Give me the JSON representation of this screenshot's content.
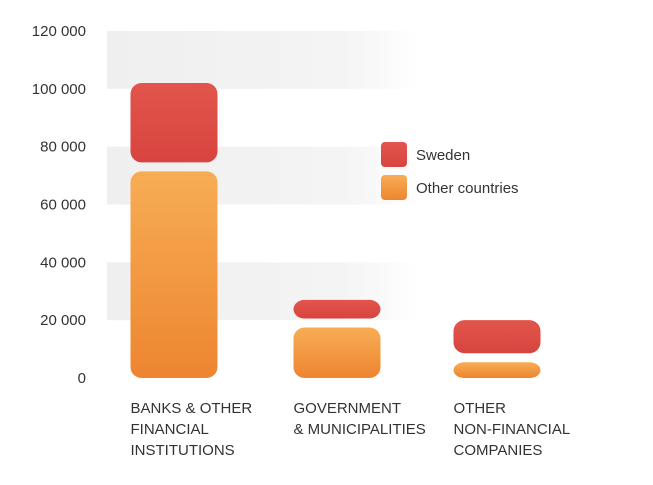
{
  "chart_data": {
    "type": "bar",
    "stacked": true,
    "categories": [
      [
        "BANKS & OTHER",
        "FINANCIAL",
        "INSTITUTIONS"
      ],
      [
        "GOVERNMENT",
        "& MUNICIPALITIES"
      ],
      [
        "OTHER",
        "NON-FINANCIAL",
        "COMPANIES"
      ]
    ],
    "series": [
      {
        "name": "Other countries",
        "color": "#f0903a",
        "values": [
          73000,
          19000,
          7000
        ]
      },
      {
        "name": "Sweden",
        "color": "#dc4b46",
        "values": [
          29000,
          8000,
          13000
        ]
      }
    ],
    "ylim": [
      0,
      120000
    ],
    "yticks": [
      0,
      20000,
      40000,
      60000,
      80000,
      100000,
      120000
    ],
    "ytick_labels": [
      "0",
      "20 000",
      "40 000",
      "60 000",
      "80 000",
      "100 000",
      "120 000"
    ],
    "grid": "alternating bands",
    "legend": {
      "position": "right",
      "items": [
        {
          "label": "Sweden",
          "color": "#dc4b46"
        },
        {
          "label": "Other countries",
          "color": "#f0903a"
        }
      ]
    }
  }
}
